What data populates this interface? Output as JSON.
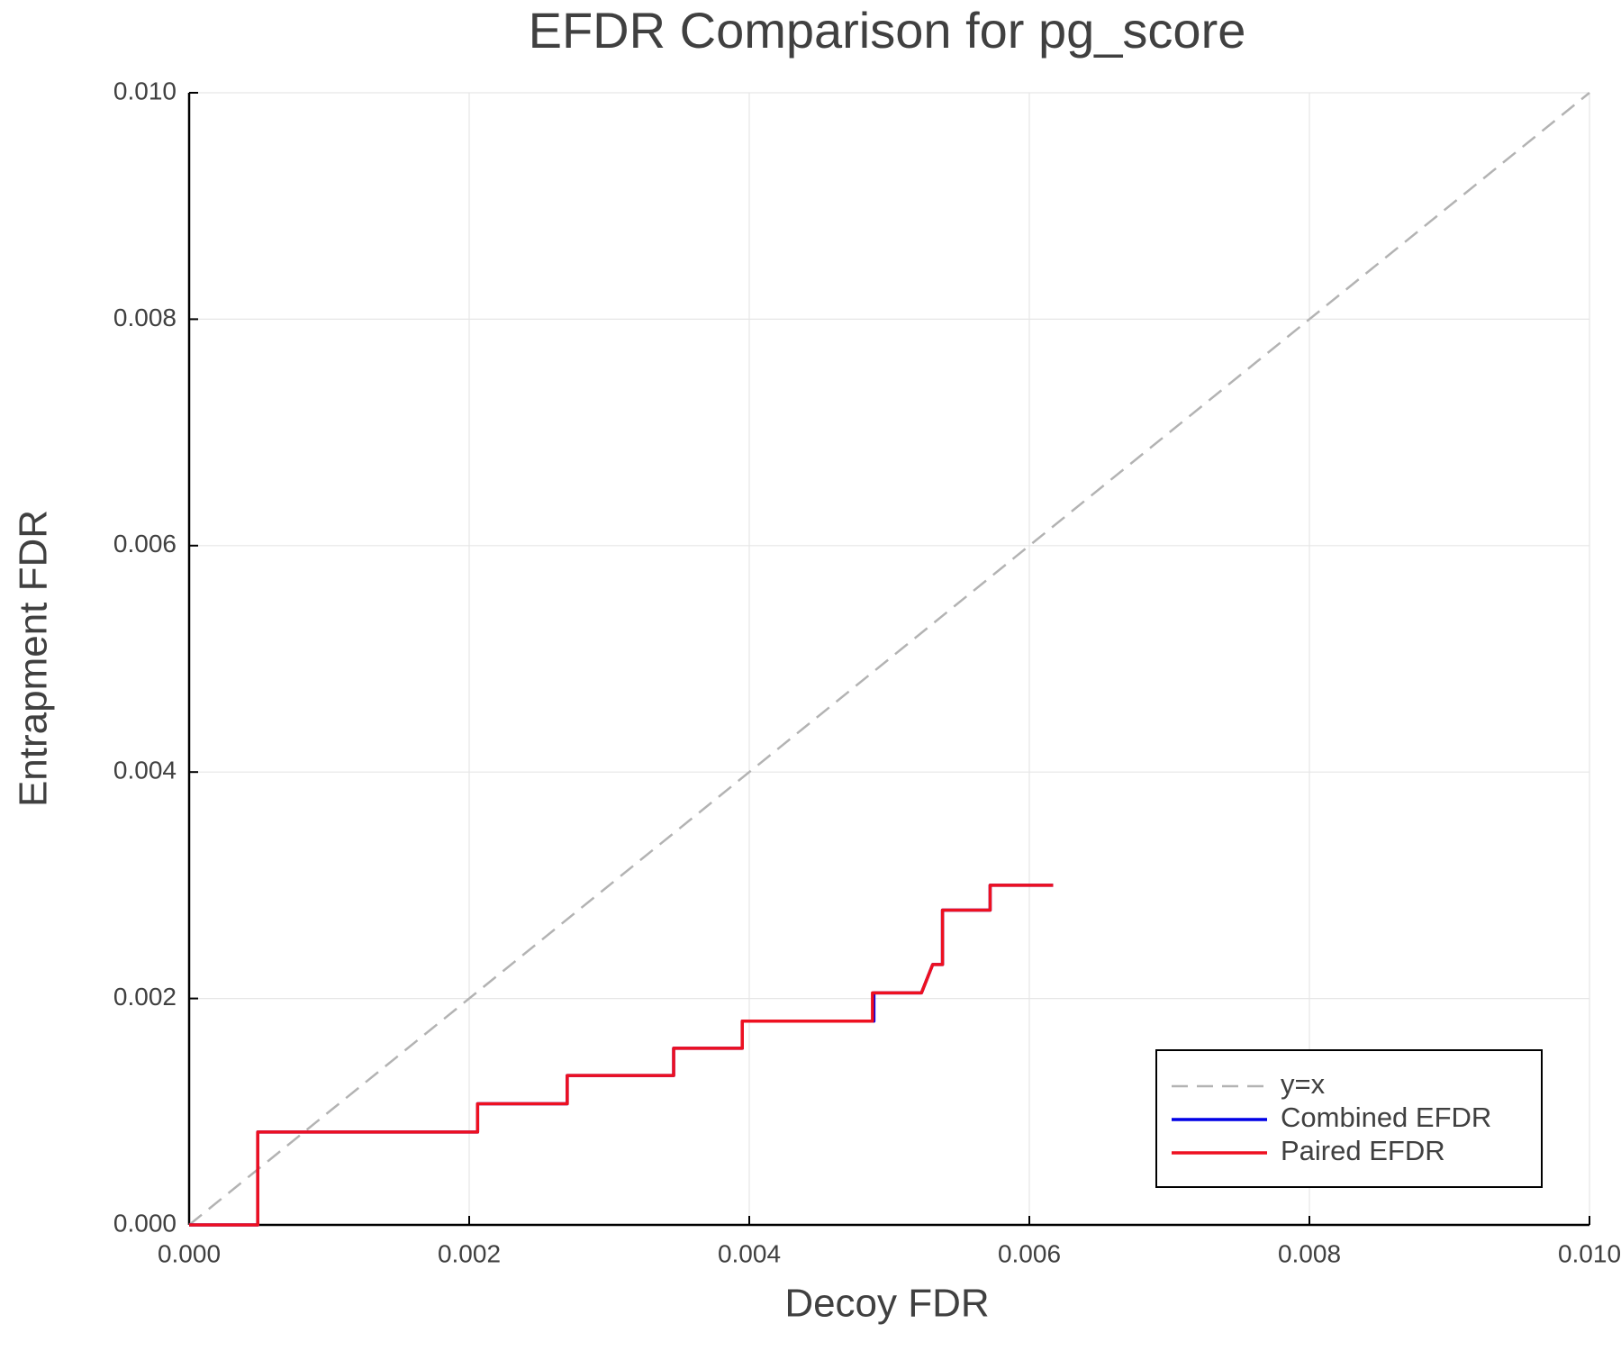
{
  "chart_data": {
    "type": "line",
    "title": "EFDR Comparison for pg_score",
    "x_label": "Decoy FDR",
    "y_label": "Entrapment FDR",
    "xlim": [
      0,
      0.01
    ],
    "ylim": [
      0,
      0.01
    ],
    "xticks": [
      {
        "value": 0,
        "label": "0.000"
      },
      {
        "value": 0.002,
        "label": "0.002"
      },
      {
        "value": 0.004,
        "label": "0.004"
      },
      {
        "value": 0.006,
        "label": "0.006"
      },
      {
        "value": 0.008,
        "label": "0.008"
      },
      {
        "value": 0.01,
        "label": "0.010"
      }
    ],
    "yticks": [
      {
        "value": 0,
        "label": "0.000"
      },
      {
        "value": 0.002,
        "label": "0.002"
      },
      {
        "value": 0.004,
        "label": "0.004"
      },
      {
        "value": 0.006,
        "label": "0.006"
      },
      {
        "value": 0.008,
        "label": "0.008"
      },
      {
        "value": 0.01,
        "label": "0.010"
      }
    ],
    "grid": true,
    "legend": "lower right",
    "series": [
      {
        "name": "y=x",
        "color": "#b3b3b3",
        "dashed": true,
        "x": [
          0,
          0.01
        ],
        "values": [
          0,
          0.01
        ]
      },
      {
        "name": "Combined EFDR",
        "color": "#0000e6",
        "dashed": false,
        "x": [
          0,
          0.00049,
          0.00049,
          0.00206,
          0.00206,
          0.0027,
          0.0027,
          0.00346,
          0.00346,
          0.00395,
          0.00395,
          0.00489,
          0.00489,
          0.00523,
          0.00531,
          0.00538,
          0.00538,
          0.00572,
          0.00572,
          0.00617
        ],
        "values": [
          0,
          0,
          0.00082,
          0.00082,
          0.00107,
          0.00107,
          0.00132,
          0.00132,
          0.00156,
          0.00156,
          0.0018,
          0.0018,
          0.00205,
          0.00205,
          0.0023,
          0.0023,
          0.00278,
          0.00278,
          0.003,
          0.003
        ]
      },
      {
        "name": "Paired EFDR",
        "color": "#ee1020",
        "dashed": false,
        "x": [
          0,
          0.00049,
          0.00049,
          0.00206,
          0.00206,
          0.0027,
          0.0027,
          0.00346,
          0.00346,
          0.00395,
          0.00395,
          0.00488,
          0.00488,
          0.00523,
          0.00531,
          0.00538,
          0.00538,
          0.00572,
          0.00572,
          0.00617
        ],
        "values": [
          0,
          0,
          0.00082,
          0.00082,
          0.00107,
          0.00107,
          0.00132,
          0.00132,
          0.00156,
          0.00156,
          0.0018,
          0.0018,
          0.00205,
          0.00205,
          0.0023,
          0.0023,
          0.00278,
          0.00278,
          0.003,
          0.003
        ]
      }
    ]
  }
}
